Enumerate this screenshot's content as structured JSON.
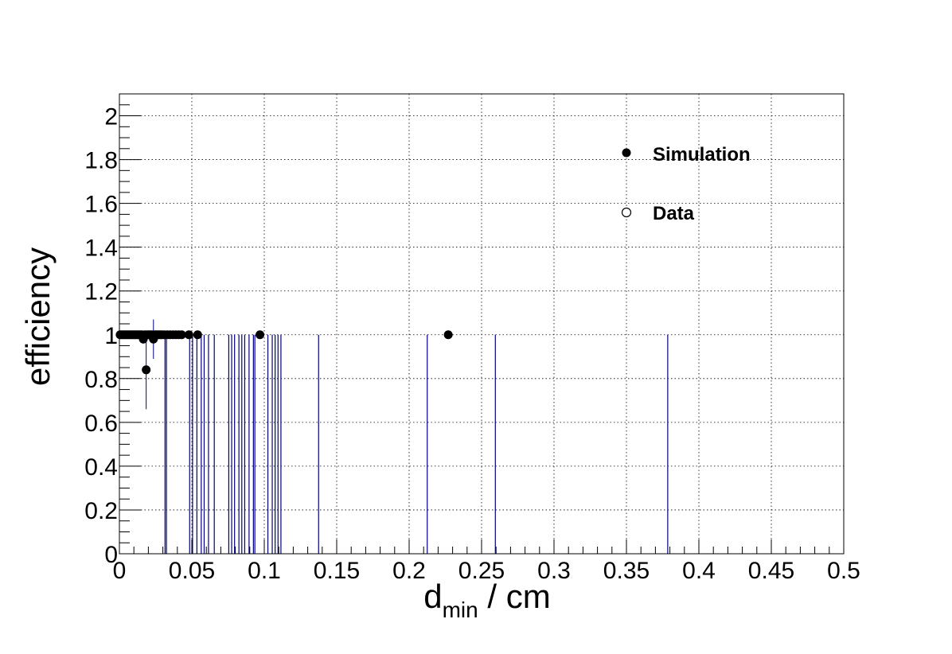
{
  "chart_data": {
    "type": "scatter",
    "title": "",
    "xlabel_main": "d",
    "xlabel_sub": "min",
    "xlabel_unit": " / cm",
    "ylabel": "efficiency",
    "xlim": [
      0,
      0.5
    ],
    "ylim": [
      0,
      2.1
    ],
    "grid": true,
    "x_ticks": [
      {
        "value": 0,
        "label": "0"
      },
      {
        "value": 0.05,
        "label": "0.05"
      },
      {
        "value": 0.1,
        "label": "0.1"
      },
      {
        "value": 0.15,
        "label": "0.15"
      },
      {
        "value": 0.2,
        "label": "0.2"
      },
      {
        "value": 0.25,
        "label": "0.25"
      },
      {
        "value": 0.3,
        "label": "0.3"
      },
      {
        "value": 0.35,
        "label": "0.35"
      },
      {
        "value": 0.4,
        "label": "0.4"
      },
      {
        "value": 0.45,
        "label": "0.45"
      },
      {
        "value": 0.5,
        "label": "0.5"
      }
    ],
    "y_ticks": [
      {
        "value": 0,
        "label": "0"
      },
      {
        "value": 0.2,
        "label": "0.2"
      },
      {
        "value": 0.4,
        "label": "0.4"
      },
      {
        "value": 0.6,
        "label": "0.6"
      },
      {
        "value": 0.8,
        "label": "0.8"
      },
      {
        "value": 1.0,
        "label": "1"
      },
      {
        "value": 1.2,
        "label": "1.2"
      },
      {
        "value": 1.4,
        "label": "1.4"
      },
      {
        "value": 1.6,
        "label": "1.6"
      },
      {
        "value": 1.8,
        "label": "1.8"
      },
      {
        "value": 2.0,
        "label": "2"
      }
    ],
    "legend": {
      "position": "top-right",
      "entries": [
        {
          "name": "Simulation",
          "marker": "filled-circle"
        },
        {
          "name": "Data",
          "marker": "open-circle"
        }
      ]
    },
    "series": [
      {
        "name": "Simulation",
        "color": "#000000",
        "points": [
          {
            "x": 0.0005,
            "y": 1.0
          },
          {
            "x": 0.0015,
            "y": 1.0
          },
          {
            "x": 0.0025,
            "y": 1.0
          },
          {
            "x": 0.0035,
            "y": 1.0
          },
          {
            "x": 0.0045,
            "y": 1.0
          },
          {
            "x": 0.0055,
            "y": 1.0
          },
          {
            "x": 0.0065,
            "y": 1.0
          },
          {
            "x": 0.0075,
            "y": 1.0
          },
          {
            "x": 0.0085,
            "y": 1.0
          },
          {
            "x": 0.0095,
            "y": 1.0
          },
          {
            "x": 0.0105,
            "y": 1.0
          },
          {
            "x": 0.0115,
            "y": 1.0
          },
          {
            "x": 0.0125,
            "y": 1.0
          },
          {
            "x": 0.0135,
            "y": 1.0
          },
          {
            "x": 0.0145,
            "y": 1.0
          },
          {
            "x": 0.0155,
            "y": 1.0
          },
          {
            "x": 0.0165,
            "y": 0.98,
            "err": 0.02
          },
          {
            "x": 0.0175,
            "y": 1.0
          },
          {
            "x": 0.0185,
            "y": 0.84,
            "err": 0.18
          },
          {
            "x": 0.0195,
            "y": 1.0
          },
          {
            "x": 0.0205,
            "y": 1.0
          },
          {
            "x": 0.0215,
            "y": 1.0
          },
          {
            "x": 0.0225,
            "y": 1.0
          },
          {
            "x": 0.0235,
            "y": 0.98,
            "err": 0.09
          },
          {
            "x": 0.0245,
            "y": 1.0
          },
          {
            "x": 0.0255,
            "y": 1.0
          },
          {
            "x": 0.0265,
            "y": 1.0
          },
          {
            "x": 0.0275,
            "y": 1.0
          },
          {
            "x": 0.0285,
            "y": 1.0
          },
          {
            "x": 0.0295,
            "y": 1.0
          },
          {
            "x": 0.031,
            "y": 1.0
          },
          {
            "x": 0.033,
            "y": 1.0
          },
          {
            "x": 0.035,
            "y": 1.0
          },
          {
            "x": 0.037,
            "y": 1.0
          },
          {
            "x": 0.039,
            "y": 1.0
          },
          {
            "x": 0.041,
            "y": 1.0
          },
          {
            "x": 0.043,
            "y": 1.0
          },
          {
            "x": 0.048,
            "y": 1.0
          },
          {
            "x": 0.054,
            "y": 1.0
          },
          {
            "x": 0.097,
            "y": 1.0
          },
          {
            "x": 0.227,
            "y": 1.0
          }
        ]
      },
      {
        "name": "Data",
        "color": "#000080",
        "vertical_bars": [
          0.0315,
          0.0325,
          0.0485,
          0.0505,
          0.0535,
          0.0565,
          0.0585,
          0.0615,
          0.0655,
          0.0755,
          0.0775,
          0.0795,
          0.0825,
          0.0845,
          0.0865,
          0.0895,
          0.0925,
          0.0935,
          0.1025,
          0.1055,
          0.1075,
          0.1095,
          0.1115,
          0.1375,
          0.2125,
          0.2595,
          0.3785
        ]
      }
    ]
  }
}
